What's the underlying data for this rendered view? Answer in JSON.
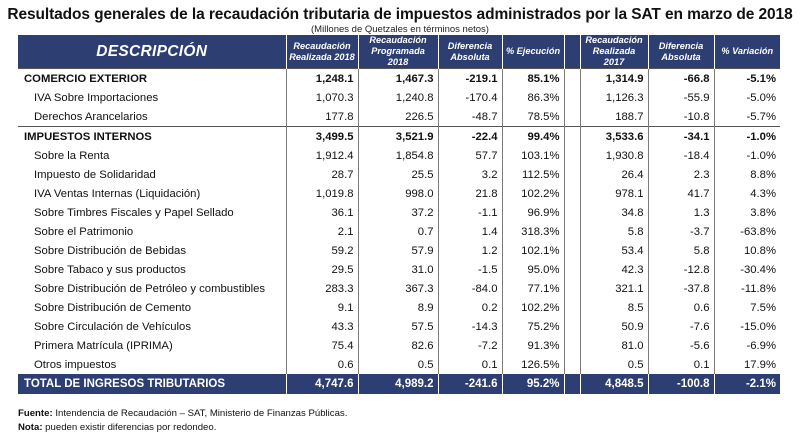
{
  "title": "Resultados generales de la recaudación tributaria de impuestos administrados por la SAT en marzo de 2018",
  "subtitle": "(Millones de Quetzales en términos netos)",
  "headers": {
    "descripcion": "DESCRIPCIÓN",
    "recaudacion_2018": "Recaudación Realizada 2018",
    "programada_2018": "Recaudación Programada 2018",
    "diferencia_1": "Diferencia Absoluta",
    "ejecucion": "% Ejecución",
    "recaudacion_2017": "Recaudación Realizada 2017",
    "diferencia_2": "Diferencia Absoluta",
    "variacion": "% Variación"
  },
  "rows": [
    {
      "type": "section",
      "desc": "COMERCIO EXTERIOR",
      "real2018": "1,248.1",
      "prog2018": "1,467.3",
      "dif1": "-219.1",
      "ejec": "85.1%",
      "real2017": "1,314.9",
      "dif2": "-66.8",
      "var": "-5.1%"
    },
    {
      "type": "item",
      "desc": "IVA Sobre Importaciones",
      "real2018": "1,070.3",
      "prog2018": "1,240.8",
      "dif1": "-170.4",
      "ejec": "86.3%",
      "real2017": "1,126.3",
      "dif2": "-55.9",
      "var": "-5.0%"
    },
    {
      "type": "item",
      "desc": "Derechos Arancelarios",
      "real2018": "177.8",
      "prog2018": "226.5",
      "dif1": "-48.7",
      "ejec": "78.5%",
      "real2017": "188.7",
      "dif2": "-10.8",
      "var": "-5.7%"
    },
    {
      "type": "section",
      "desc": "IMPUESTOS INTERNOS",
      "real2018": "3,499.5",
      "prog2018": "3,521.9",
      "dif1": "-22.4",
      "ejec": "99.4%",
      "real2017": "3,533.6",
      "dif2": "-34.1",
      "var": "-1.0%"
    },
    {
      "type": "item",
      "desc": "Sobre la Renta",
      "real2018": "1,912.4",
      "prog2018": "1,854.8",
      "dif1": "57.7",
      "ejec": "103.1%",
      "real2017": "1,930.8",
      "dif2": "-18.4",
      "var": "-1.0%"
    },
    {
      "type": "item",
      "desc": "Impuesto de Solidaridad",
      "real2018": "28.7",
      "prog2018": "25.5",
      "dif1": "3.2",
      "ejec": "112.5%",
      "real2017": "26.4",
      "dif2": "2.3",
      "var": "8.8%"
    },
    {
      "type": "item",
      "desc": "IVA Ventas Internas (Liquidación)",
      "real2018": "1,019.8",
      "prog2018": "998.0",
      "dif1": "21.8",
      "ejec": "102.2%",
      "real2017": "978.1",
      "dif2": "41.7",
      "var": "4.3%"
    },
    {
      "type": "item",
      "desc": "Sobre Timbres Fiscales y Papel Sellado",
      "real2018": "36.1",
      "prog2018": "37.2",
      "dif1": "-1.1",
      "ejec": "96.9%",
      "real2017": "34.8",
      "dif2": "1.3",
      "var": "3.8%"
    },
    {
      "type": "item",
      "desc": "Sobre el Patrimonio",
      "real2018": "2.1",
      "prog2018": "0.7",
      "dif1": "1.4",
      "ejec": "318.3%",
      "real2017": "5.8",
      "dif2": "-3.7",
      "var": "-63.8%"
    },
    {
      "type": "item",
      "desc": "Sobre Distribución de Bebidas",
      "real2018": "59.2",
      "prog2018": "57.9",
      "dif1": "1.2",
      "ejec": "102.1%",
      "real2017": "53.4",
      "dif2": "5.8",
      "var": "10.8%"
    },
    {
      "type": "item",
      "desc": "Sobre Tabaco y sus productos",
      "real2018": "29.5",
      "prog2018": "31.0",
      "dif1": "-1.5",
      "ejec": "95.0%",
      "real2017": "42.3",
      "dif2": "-12.8",
      "var": "-30.4%"
    },
    {
      "type": "item",
      "desc": "Sobre Distribución de Petróleo y combustibles",
      "real2018": "283.3",
      "prog2018": "367.3",
      "dif1": "-84.0",
      "ejec": "77.1%",
      "real2017": "321.1",
      "dif2": "-37.8",
      "var": "-11.8%"
    },
    {
      "type": "item",
      "desc": "Sobre Distribución de Cemento",
      "real2018": "9.1",
      "prog2018": "8.9",
      "dif1": "0.2",
      "ejec": "102.2%",
      "real2017": "8.5",
      "dif2": "0.6",
      "var": "7.5%"
    },
    {
      "type": "item",
      "desc": "Sobre Circulación de Vehículos",
      "real2018": "43.3",
      "prog2018": "57.5",
      "dif1": "-14.3",
      "ejec": "75.2%",
      "real2017": "50.9",
      "dif2": "-7.6",
      "var": "-15.0%"
    },
    {
      "type": "item",
      "desc": "Primera Matrícula (IPRIMA)",
      "real2018": "75.4",
      "prog2018": "82.6",
      "dif1": "-7.2",
      "ejec": "91.3%",
      "real2017": "81.0",
      "dif2": "-5.6",
      "var": "-6.9%"
    },
    {
      "type": "item",
      "desc": "Otros impuestos",
      "real2018": "0.6",
      "prog2018": "0.5",
      "dif1": "0.1",
      "ejec": "126.5%",
      "real2017": "0.5",
      "dif2": "0.1",
      "var": "17.9%"
    }
  ],
  "total": {
    "desc": "TOTAL DE INGRESOS TRIBUTARIOS",
    "real2018": "4,747.6",
    "prog2018": "4,989.2",
    "dif1": "-241.6",
    "ejec": "95.2%",
    "real2017": "4,848.5",
    "dif2": "-100.8",
    "var": "-2.1%"
  },
  "notes": {
    "fuente_label": "Fuente:",
    "fuente_text": " Intendencia de Recaudación – SAT, Ministerio de Finanzas Públicas.",
    "nota_label": "Nota:",
    "nota_text": " pueden existir diferencias por redondeo."
  }
}
